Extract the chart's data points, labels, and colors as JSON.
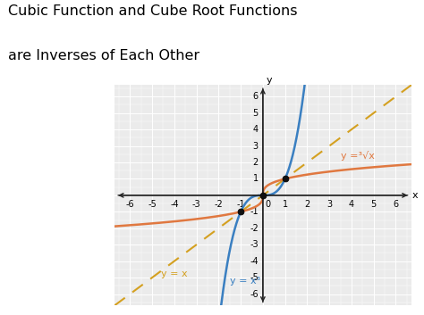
{
  "title_line1": "Cubic Function and Cube Root Functions",
  "title_line2": "are Inverses of Each Other",
  "title_fontsize": 11.5,
  "bg_color": "#ffffff",
  "plot_bg_color": "#ebebeb",
  "grid_color": "#ffffff",
  "axis_color": "#222222",
  "xlim": [
    -6.7,
    6.7
  ],
  "ylim": [
    -6.7,
    6.7
  ],
  "xticks": [
    -6,
    -5,
    -4,
    -3,
    -2,
    -1,
    1,
    2,
    3,
    4,
    5,
    6
  ],
  "yticks": [
    -6,
    -5,
    -4,
    -3,
    -2,
    -1,
    1,
    2,
    3,
    4,
    5,
    6
  ],
  "cubic_color": "#3a7fc1",
  "cube_root_color": "#e07840",
  "diagonal_color": "#d4a020",
  "label_cubic": "y = x³",
  "label_cube_root": "y =³√x",
  "label_diagonal": "y = x",
  "dot_color": "#111111",
  "dot_size": 40,
  "tick_fontsize": 7.0
}
